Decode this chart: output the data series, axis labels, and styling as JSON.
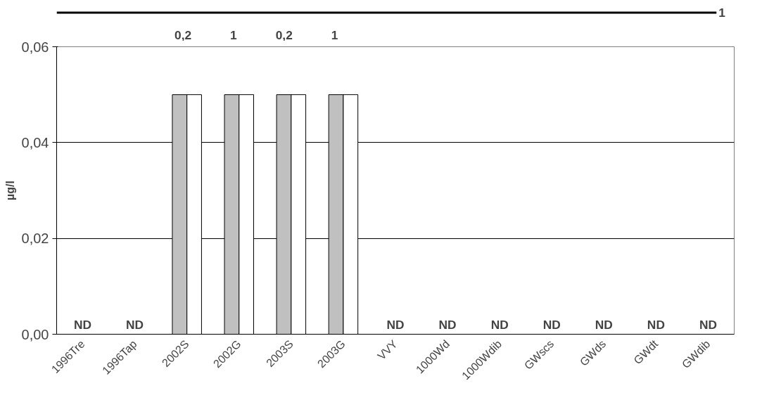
{
  "chart_data": {
    "type": "bar",
    "ylabel": "µg/l",
    "categories": [
      "1996Tre",
      "1996Tap",
      "2002S",
      "2002G",
      "2003S",
      "2003G",
      "VVY",
      "1000Wd",
      "1000Wdib",
      "GWscs",
      "GWds",
      "GWdt",
      "GWdib"
    ],
    "series": [
      {
        "color": "#c0c0c0",
        "values": [
          null,
          null,
          0.05,
          0.05,
          0.05,
          0.05,
          null,
          null,
          null,
          null,
          null,
          null,
          null
        ]
      },
      {
        "color": "#ffffff",
        "values": [
          null,
          null,
          0.05,
          0.05,
          0.05,
          0.05,
          null,
          null,
          null,
          null,
          null,
          null,
          null
        ]
      }
    ],
    "ylim": [
      0,
      0.06
    ],
    "yticks": [
      {
        "value": 0,
        "label": "0,00"
      },
      {
        "value": 0.02,
        "label": "0,02"
      },
      {
        "value": 0.04,
        "label": "0,04"
      },
      {
        "value": 0.06,
        "label": "0,06"
      }
    ],
    "grid": "y",
    "annotations": [
      "ND",
      "ND",
      "0,2",
      "1",
      "0,2",
      "1",
      "ND",
      "ND",
      "ND",
      "ND",
      "ND",
      "ND",
      "ND",
      "1"
    ]
  }
}
